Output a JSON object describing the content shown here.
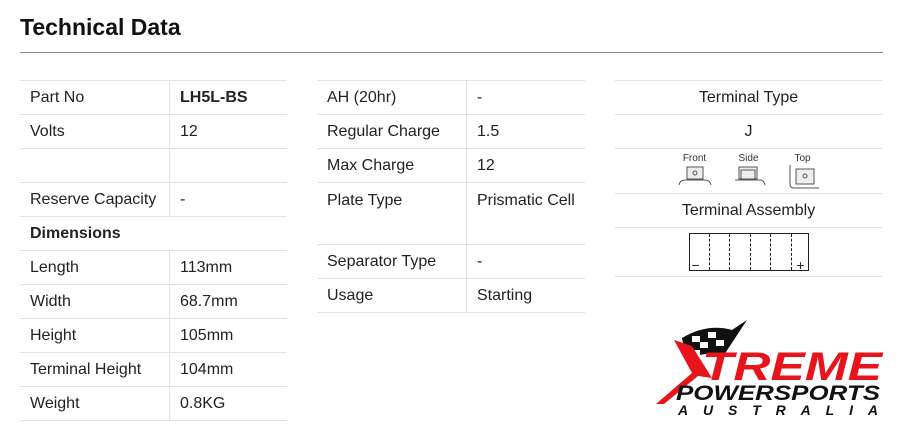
{
  "title": "Technical Data",
  "general": [
    {
      "label": "Part No",
      "value": "LH5L-BS"
    },
    {
      "label": "Volts",
      "value": "12"
    },
    {
      "label": "",
      "value": ""
    },
    {
      "label": "Reserve Capacity",
      "value": "-"
    }
  ],
  "dimensions_heading": "Dimensions",
  "dimensions": [
    {
      "label": "Length",
      "value": "113mm"
    },
    {
      "label": "Width",
      "value": "68.7mm"
    },
    {
      "label": "Height",
      "value": "105mm"
    },
    {
      "label": "Terminal Height",
      "value": "104mm"
    },
    {
      "label": "Weight",
      "value": "0.8KG"
    }
  ],
  "specs": [
    {
      "label": "AH (20hr)",
      "value": "-"
    },
    {
      "label": "Regular Charge",
      "value": "1.5"
    },
    {
      "label": "Max Charge",
      "value": "12"
    },
    {
      "label": "Plate Type",
      "value": "Prismatic Cell"
    },
    {
      "label": "Separator Type",
      "value": "-"
    },
    {
      "label": "Usage",
      "value": "Starting"
    }
  ],
  "terminal": {
    "type_heading": "Terminal Type",
    "type_value": "J",
    "views": [
      "Front",
      "Side",
      "Top"
    ],
    "assembly_heading": "Terminal Assembly",
    "negative": "−",
    "positive": "+"
  },
  "logo": {
    "line1": "XTREME",
    "line2": "POWERSPORTS",
    "line3": "AUSTRALIA",
    "colors": {
      "red": "#e8141b",
      "black": "#111111"
    }
  }
}
